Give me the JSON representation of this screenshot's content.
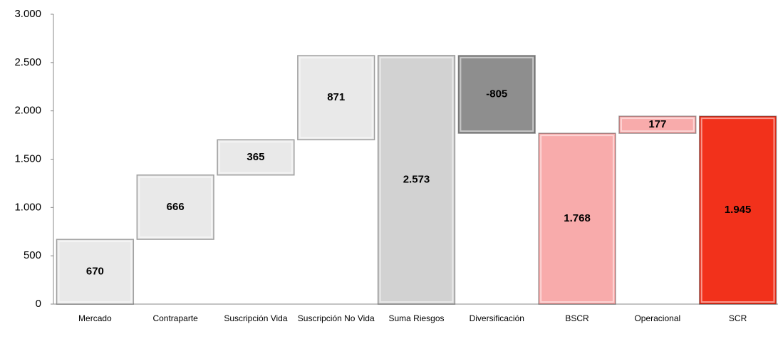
{
  "chart_data": {
    "type": "waterfall",
    "categories": [
      "Mercado",
      "Contraparte",
      "Suscripción Vida",
      "Suscripción No Vida",
      "Suma Riesgos",
      "Diversificación",
      "BSCR",
      "Operacional",
      "SCR"
    ],
    "values": [
      670,
      666,
      365,
      871,
      2573,
      -805,
      1768,
      177,
      1945
    ],
    "value_labels": [
      "670",
      "666",
      "365",
      "871",
      "2.573",
      "-805",
      "1.768",
      "177",
      "1.945"
    ],
    "measure": [
      "relative",
      "relative",
      "relative",
      "relative",
      "total",
      "relative",
      "total",
      "relative",
      "total"
    ],
    "colors": [
      "#e9e9e9",
      "#e9e9e9",
      "#e9e9e9",
      "#e9e9e9",
      "#d2d2d2",
      "#8e8e8e",
      "#f8abab",
      "#f8abab",
      "#f2311b"
    ],
    "ylim": [
      0,
      3000
    ],
    "yticks": [
      0,
      500,
      {
        "value": 1000,
        "label": "1.000"
      },
      {
        "value": 1500,
        "label": "1.500"
      },
      {
        "value": 2000,
        "label": "2.000"
      },
      {
        "value": 2500,
        "label": "2.500"
      },
      {
        "value": 3000,
        "label": "3.000"
      }
    ],
    "grid": false
  }
}
